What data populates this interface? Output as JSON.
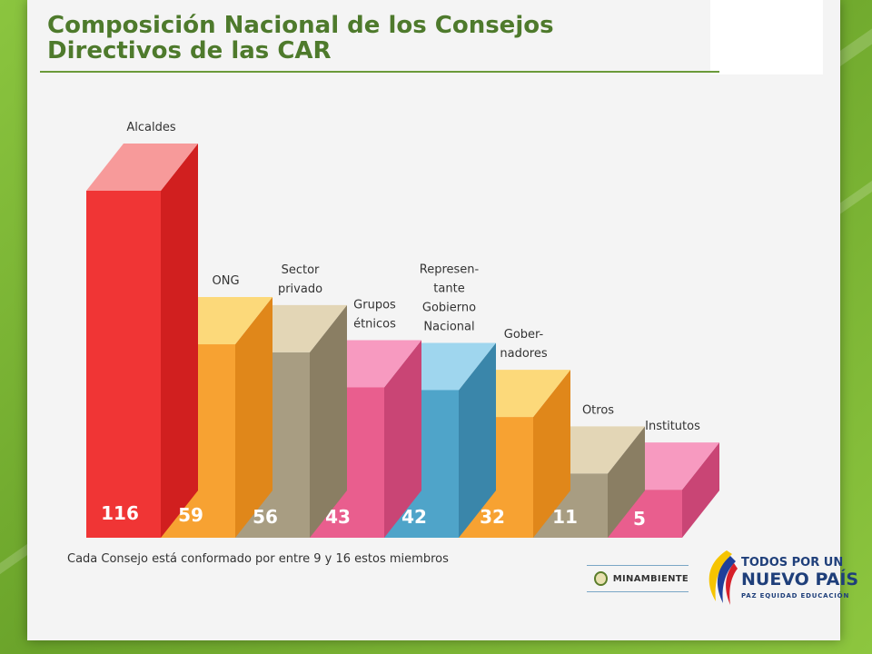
{
  "title": "Composición Nacional de los Consejos Directivos de las CAR",
  "note": "Cada Consejo está conformado por entre 9 y 16 estos miembros",
  "logos": {
    "minambiente": "MINAMBIENTE",
    "pais_line1": "TODOS POR UN",
    "pais_line2": "NUEVO PAÍS",
    "pais_line3": "PAZ  EQUIDAD  EDUCACIÓN"
  },
  "colors": {
    "background": "#8bc53f",
    "title": "#4e7a2c"
  },
  "chart_data": {
    "type": "bar",
    "categories": [
      "Alcaldes",
      "ONG",
      "Sector privado",
      "Grupos étnicos",
      "Represen- tante Gobierno Nacional",
      "Gober- nadores",
      "Otros",
      "Institutos"
    ],
    "category_lines": [
      [
        "Alcaldes"
      ],
      [
        "ONG"
      ],
      [
        "Sector",
        "privado"
      ],
      [
        "Grupos",
        "étnicos"
      ],
      [
        "Represen-",
        "tante",
        "Gobierno",
        "Nacional"
      ],
      [
        "Gober-",
        "nadores"
      ],
      [
        "Otros"
      ],
      [
        "Institutos"
      ]
    ],
    "values": [
      116,
      59,
      56,
      43,
      42,
      32,
      11,
      5
    ],
    "colors": [
      {
        "front": "#f03535",
        "top": "#f79a9a",
        "side": "#d11f1f"
      },
      {
        "front": "#f7a232",
        "top": "#fcd97a",
        "side": "#e0871a"
      },
      {
        "front": "#a89d82",
        "top": "#e3d6b6",
        "side": "#8a7e63"
      },
      {
        "front": "#e95e8e",
        "top": "#f79ac0",
        "side": "#c94575"
      },
      {
        "front": "#4fa4c9",
        "top": "#9fd6ee",
        "side": "#3a86aa"
      },
      {
        "front": "#f7a232",
        "top": "#fcd97a",
        "side": "#e0871a"
      },
      {
        "front": "#a89d82",
        "top": "#e3d6b6",
        "side": "#8a7e63"
      },
      {
        "front": "#e95e8e",
        "top": "#f79ac0",
        "side": "#c94575"
      }
    ],
    "ylim": [
      0,
      116
    ],
    "grid": false,
    "legend": "none"
  }
}
